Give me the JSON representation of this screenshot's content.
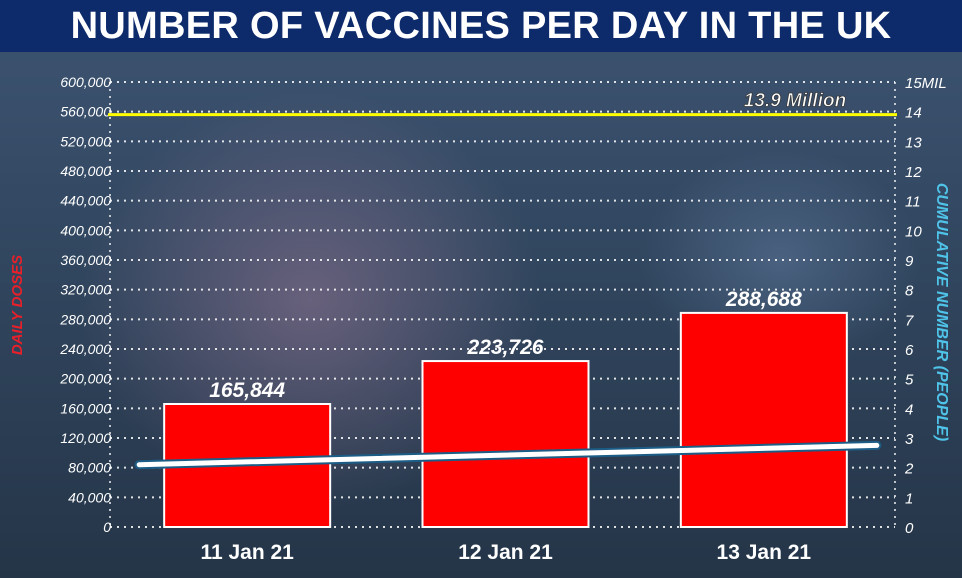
{
  "title": "NUMBER OF VACCINES PER DAY IN THE UK",
  "colors": {
    "title_bg": "#0d2a6b",
    "bars": "#ff0000",
    "target_line": "#ffff00",
    "cumulative_line": "#6fd3f5",
    "left_axis_label": "#e8202a",
    "right_axis_label": "#4fc3e8"
  },
  "chart_data": {
    "type": "bar",
    "categories": [
      "11 Jan 21",
      "12 Jan 21",
      "13 Jan 21"
    ],
    "series": [
      {
        "values": [
          165844,
          223726,
          288688
        ]
      }
    ],
    "data_labels": [
      "165,844",
      "223,726",
      "288,688"
    ],
    "ylabel": "DAILY DOSES",
    "ylim": [
      0,
      600000
    ],
    "yticks": [
      0,
      40000,
      80000,
      120000,
      160000,
      200000,
      240000,
      280000,
      320000,
      360000,
      400000,
      440000,
      480000,
      520000,
      560000,
      600000
    ],
    "ytick_labels": [
      "0",
      "40,000",
      "80,000",
      "120,000",
      "160,000",
      "200,000",
      "240,000",
      "280,000",
      "320,000",
      "360,000",
      "400,000",
      "440,000",
      "480,000",
      "520,000",
      "560,000",
      "600,000"
    ],
    "y2label": "CUMULATIVE NUMBER (PEOPLE)",
    "y2lim": [
      0,
      15
    ],
    "y2ticks": [
      0,
      1,
      2,
      3,
      4,
      5,
      6,
      7,
      8,
      9,
      10,
      11,
      12,
      13,
      14,
      15
    ],
    "y2tick_labels": [
      "0",
      "1",
      "2",
      "3",
      "4",
      "5",
      "6",
      "7",
      "8",
      "9",
      "10",
      "11",
      "12",
      "13",
      "14",
      "15MIL"
    ],
    "line_series": {
      "x": [
        "11 Jan 21",
        "13 Jan 21"
      ],
      "values": [
        2.1,
        2.75
      ]
    },
    "target": {
      "value": 13.9,
      "label": "13.9 Million"
    },
    "grid": true
  }
}
